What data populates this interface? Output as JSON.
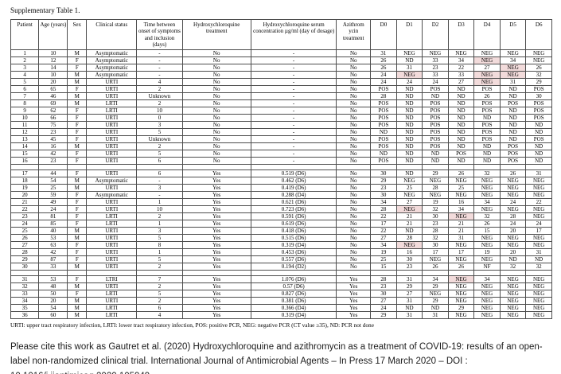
{
  "title": "Supplementary Table 1.",
  "colors": {
    "highlight_bg": "#f2dbdb"
  },
  "footnote": "URTI: upper tract respiratory infection, LRTI: lower tract respiratory infection, POS: positive PCR, NEG: negative PCR (CT value ≥35), ND: PCR not done",
  "citation": "Please cite this work as Gautret et al. (2020) Hydroxychloroquine and azithromycin as a treatment of COVID-19: results of an open-label non-randomized clinical trial. International Journal of Antimicrobial Agents – In Press 17 March 2020 – DOI : 10.1016/j.ijantimicag.2020.105949",
  "table": {
    "columns": [
      {
        "id": "patient",
        "label": "Patient",
        "width": "5.2%"
      },
      {
        "id": "age",
        "label": "Age (years)",
        "width": "5.3%"
      },
      {
        "id": "sex",
        "label": "Sex",
        "width": "3.5%"
      },
      {
        "id": "clinical-status",
        "label": "Clinical status",
        "width": "9.3%"
      },
      {
        "id": "time-between",
        "label": "Time between onset of symptoms and inclusion (days)",
        "width": "8.4%"
      },
      {
        "id": "hcq-treatment",
        "label": "Hydroxychloroquine treatment",
        "width": "12.7%"
      },
      {
        "id": "hcq-serum",
        "label": "Hydroxychloroquine serum concentration µg/ml (day of dosage)",
        "width": "15.8%"
      },
      {
        "id": "azithromycin",
        "label": "Azithrom ycin treatment",
        "width": "6.3%"
      },
      {
        "id": "d0",
        "label": "D0",
        "width": "4.786%"
      },
      {
        "id": "d1",
        "label": "D1",
        "width": "4.786%"
      },
      {
        "id": "d2",
        "label": "D2",
        "width": "4.786%"
      },
      {
        "id": "d3",
        "label": "D3",
        "width": "4.786%"
      },
      {
        "id": "d4",
        "label": "D4",
        "width": "4.786%"
      },
      {
        "id": "d5",
        "label": "D5",
        "width": "4.786%"
      },
      {
        "id": "d6",
        "label": "D6",
        "width": "4.786%"
      }
    ],
    "rows": [
      {
        "cells": [
          "1",
          "10",
          "M",
          "Asymptomatic",
          "-",
          "No",
          "-",
          "No",
          "31",
          "NEG",
          "NEG",
          "NEG",
          "NEG",
          "NEG",
          "NEG"
        ],
        "highlight": []
      },
      {
        "cells": [
          "2",
          "12",
          "F",
          "Asymptomatic",
          "-",
          "No",
          "-",
          "No",
          "26",
          "ND",
          "33",
          "34",
          "NEG",
          "34",
          "NEG"
        ],
        "highlight": [
          12
        ]
      },
      {
        "cells": [
          "3",
          "14",
          "F",
          "Asymptomatic",
          "-",
          "No",
          "-",
          "No",
          "26",
          "31",
          "23",
          "22",
          "27",
          "NEG",
          "26"
        ],
        "highlight": [
          13
        ]
      },
      {
        "cells": [
          "4",
          "10",
          "M",
          "Asymptomatic",
          "-",
          "No",
          "-",
          "No",
          "24",
          "NEG",
          "33",
          "33",
          "NEG",
          "NEG",
          "32"
        ],
        "highlight": [
          9,
          12,
          13
        ]
      },
      {
        "cells": [
          "5",
          "20",
          "M",
          "URTI",
          "4",
          "No",
          "-",
          "No",
          "24",
          "24",
          "24",
          "27",
          "NEG",
          "31",
          "29"
        ],
        "highlight": [
          12
        ]
      },
      {
        "cells": [
          "6",
          "65",
          "F",
          "URTI",
          "2",
          "No",
          "-",
          "No",
          "POS",
          "ND",
          "POS",
          "ND",
          "POS",
          "ND",
          "POS"
        ],
        "highlight": []
      },
      {
        "cells": [
          "7",
          "46",
          "M",
          "URTI",
          "Unknown",
          "No",
          "-",
          "No",
          "28",
          "ND",
          "ND",
          "ND",
          "26",
          "ND",
          "30"
        ],
        "highlight": []
      },
      {
        "cells": [
          "8",
          "69",
          "M",
          "LRTI",
          "2",
          "No",
          "-",
          "No",
          "POS",
          "ND",
          "POS",
          "ND",
          "POS",
          "POS",
          "POS"
        ],
        "highlight": []
      },
      {
        "cells": [
          "9",
          "62",
          "F",
          "LRTI",
          "10",
          "No",
          "-",
          "No",
          "POS",
          "ND",
          "POS",
          "ND",
          "POS",
          "ND",
          "POS"
        ],
        "highlight": []
      },
      {
        "cells": [
          "10",
          "66",
          "F",
          "URTI",
          "0",
          "No",
          "-",
          "No",
          "POS",
          "ND",
          "POS",
          "ND",
          "ND",
          "ND",
          "POS"
        ],
        "highlight": []
      },
      {
        "cells": [
          "11",
          "75",
          "F",
          "URTI",
          "3",
          "No",
          "-",
          "No",
          "POS",
          "ND",
          "POS",
          "ND",
          "POS",
          "ND",
          "ND"
        ],
        "highlight": []
      },
      {
        "cells": [
          "12",
          "23",
          "F",
          "URTI",
          "5",
          "No",
          "-",
          "No",
          "ND",
          "ND",
          "POS",
          "ND",
          "POS",
          "ND",
          "ND"
        ],
        "highlight": []
      },
      {
        "cells": [
          "13",
          "45",
          "F",
          "URTI",
          "Unknown",
          "No",
          "-",
          "No",
          "POS",
          "ND",
          "POS",
          "ND",
          "POS",
          "ND",
          "POS"
        ],
        "highlight": []
      },
      {
        "cells": [
          "14",
          "16",
          "M",
          "URTI",
          "2",
          "No",
          "-",
          "No",
          "POS",
          "ND",
          "POS",
          "ND",
          "ND",
          "POS",
          "ND"
        ],
        "highlight": []
      },
      {
        "cells": [
          "15",
          "42",
          "F",
          "URTI",
          "5",
          "No",
          "-",
          "No",
          "ND",
          "ND",
          "ND",
          "POS",
          "ND",
          "POS",
          "ND"
        ],
        "highlight": []
      },
      {
        "cells": [
          "16",
          "23",
          "F",
          "URTI",
          "6",
          "No",
          "-",
          "No",
          "POS",
          "ND",
          "ND",
          "ND",
          "ND",
          "POS",
          "ND"
        ],
        "highlight": []
      },
      {
        "separator": true
      },
      {
        "cells": [
          "17",
          "44",
          "F",
          "URTI",
          "6",
          "Yes",
          "0.519 (D6)",
          "No",
          "30",
          "ND",
          "29",
          "26",
          "32",
          "26",
          "31"
        ],
        "highlight": []
      },
      {
        "cells": [
          "18",
          "54",
          "M",
          "Asymptomatic",
          "-",
          "Yes",
          "0.462 (D6)",
          "No",
          "29",
          "NEG",
          "NEG",
          "NEG",
          "NEG",
          "NEG",
          "NEG"
        ],
        "highlight": []
      },
      {
        "cells": [
          "19",
          "25",
          "M",
          "URTI",
          "3",
          "Yes",
          "0.419 (D6)",
          "No",
          "23",
          "25",
          "28",
          "25",
          "NEG",
          "NEG",
          "NEG"
        ],
        "highlight": []
      },
      {
        "cells": [
          "20",
          "59",
          "F",
          "Asymptomatic",
          "-",
          "Yes",
          "0.288 (D4)",
          "No",
          "30",
          "NEG",
          "NEG",
          "NEG",
          "NEG",
          "NEG",
          "NEG"
        ],
        "highlight": []
      },
      {
        "cells": [
          "21",
          "49",
          "F",
          "URTI",
          "1",
          "Yes",
          "0.621 (D6)",
          "No",
          "34",
          "27",
          "19",
          "16",
          "34",
          "24",
          "22"
        ],
        "highlight": []
      },
      {
        "cells": [
          "22",
          "24",
          "F",
          "URTI",
          "10",
          "Yes",
          "0.723 (D6)",
          "No",
          "28",
          "NEG",
          "32",
          "34",
          "NEG",
          "NEG",
          "NEG"
        ],
        "highlight": [
          9
        ]
      },
      {
        "cells": [
          "23",
          "81",
          "F",
          "LRTI",
          "2",
          "Yes",
          "0.591 (D6)",
          "No",
          "22",
          "21",
          "30",
          "NEG",
          "32",
          "28",
          "NEG"
        ],
        "highlight": [
          11
        ]
      },
      {
        "cells": [
          "24",
          "85",
          "F",
          "LRTI",
          "1",
          "Yes",
          "0.619 (D6)",
          "No",
          "17",
          "21",
          "23",
          "21",
          "26",
          "24",
          "24"
        ],
        "highlight": []
      },
      {
        "cells": [
          "25",
          "40",
          "M",
          "URTI",
          "3",
          "Yes",
          "0.418 (D6)",
          "No",
          "22",
          "ND",
          "28",
          "21",
          "15",
          "20",
          "17"
        ],
        "highlight": []
      },
      {
        "cells": [
          "26",
          "53",
          "M",
          "URTI",
          "5",
          "Yes",
          "0.515 (D6)",
          "No",
          "27",
          "28",
          "32",
          "31",
          "NEG",
          "NEG",
          "NEG"
        ],
        "highlight": []
      },
      {
        "cells": [
          "27",
          "63",
          "F",
          "URTI",
          "8",
          "Yes",
          "0.319 (D4)",
          "No",
          "34",
          "NEG",
          "30",
          "NEG",
          "NEG",
          "NEG",
          "NEG"
        ],
        "highlight": [
          9
        ]
      },
      {
        "cells": [
          "28",
          "42",
          "F",
          "URTI",
          "1",
          "Yes",
          "0.453 (D6)",
          "No",
          "19",
          "16",
          "17",
          "17",
          "19",
          "20",
          "31"
        ],
        "highlight": []
      },
      {
        "cells": [
          "29",
          "87",
          "F",
          "URTI",
          "5",
          "Yes",
          "0.557 (D6)",
          "No",
          "25",
          "30",
          "NEG",
          "NEG",
          "NEG",
          "ND",
          "ND"
        ],
        "highlight": []
      },
      {
        "cells": [
          "30",
          "33",
          "M",
          "URTI",
          "2",
          "Yes",
          "0.194 (D2)",
          "No",
          "15",
          "23",
          "26",
          "26",
          "NF",
          "32",
          "32"
        ],
        "highlight": []
      },
      {
        "separator": true
      },
      {
        "cells": [
          "31",
          "53",
          "F",
          "LTRI",
          "7",
          "Yes",
          "1.076 (D6)",
          "Yes",
          "28",
          "31",
          "34",
          "NEG",
          "34",
          "NEG",
          "NEG"
        ],
        "highlight": [
          11
        ]
      },
      {
        "cells": [
          "32",
          "48",
          "M",
          "URTI",
          "2",
          "Yes",
          "0.57 (D6)",
          "Yes",
          "23",
          "29",
          "29",
          "NEG",
          "NEG",
          "NEG",
          "NEG"
        ],
        "highlight": []
      },
      {
        "cells": [
          "33",
          "50",
          "F",
          "LRTI",
          "5",
          "Yes",
          "0.827 (D6)",
          "Yes",
          "30",
          "27",
          "NEG",
          "NEG",
          "NEG",
          "NEG",
          "NEG"
        ],
        "highlight": []
      },
      {
        "cells": [
          "34",
          "20",
          "M",
          "URTI",
          "2",
          "Yes",
          "0.381 (D6)",
          "Yes",
          "27",
          "31",
          "29",
          "NEG",
          "NEG",
          "NEG",
          "NEG"
        ],
        "highlight": []
      },
      {
        "cells": [
          "35",
          "54",
          "M",
          "LRTI",
          "6",
          "Yes",
          "0.366 (D4)",
          "Yes",
          "24",
          "ND",
          "ND",
          "29",
          "NEG",
          "NEG",
          "NEG"
        ],
        "highlight": []
      },
      {
        "cells": [
          "36",
          "60",
          "M",
          "LRTI",
          "4",
          "Yes",
          "0.319 (D4)",
          "Yes",
          "29",
          "31",
          "31",
          "NEG",
          "NEG",
          "NEG",
          "NEG"
        ],
        "highlight": []
      }
    ]
  }
}
